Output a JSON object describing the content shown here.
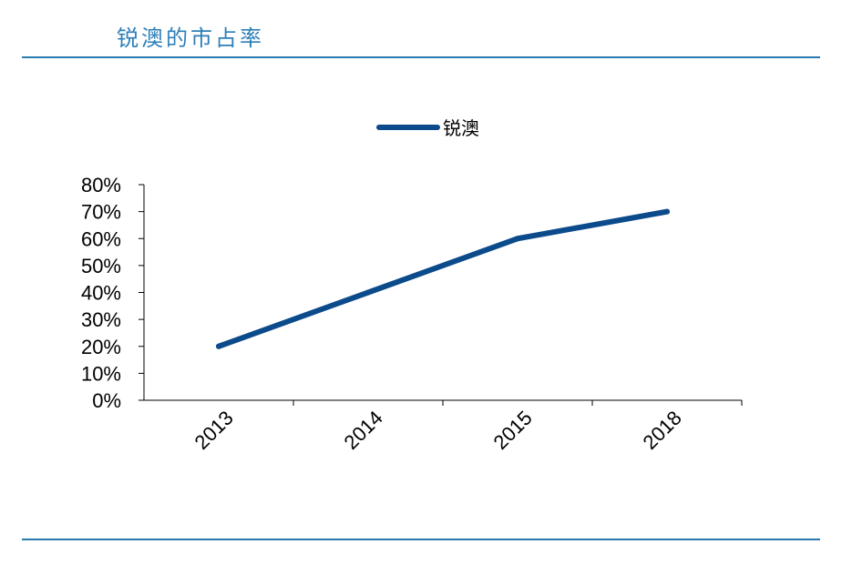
{
  "header": {
    "title": "锐澳的市占率"
  },
  "chart_data": {
    "type": "line",
    "categories": [
      "2013",
      "2014",
      "2015",
      "2018"
    ],
    "series": [
      {
        "name": "锐澳",
        "values": [
          20,
          40,
          60,
          70
        ],
        "color": "#0b4a8b"
      }
    ],
    "y_tick_labels": [
      "0%",
      "10%",
      "20%",
      "30%",
      "40%",
      "50%",
      "60%",
      "70%",
      "80%"
    ],
    "ylim": [
      0,
      80
    ],
    "y_unit": "%",
    "grid": false,
    "legend_position": "top-center",
    "title": "",
    "xlabel": "",
    "ylabel": ""
  }
}
